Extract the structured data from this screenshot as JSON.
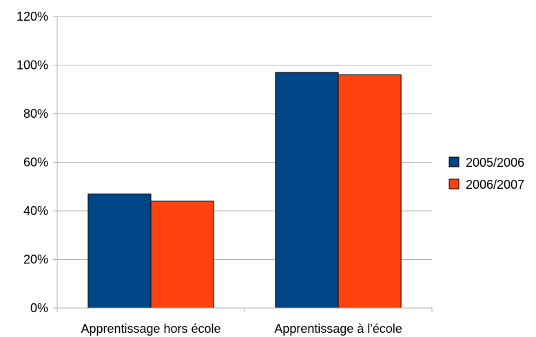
{
  "chart_data": {
    "type": "bar",
    "title": "",
    "xlabel": "",
    "ylabel": "",
    "categories": [
      "Apprentissage hors école",
      "Apprentissage à l'école"
    ],
    "series": [
      {
        "name": "2005/2006",
        "values": [
          47,
          97
        ],
        "color": "#004586"
      },
      {
        "name": "2006/2007",
        "values": [
          44,
          96
        ],
        "color": "#ff420e"
      }
    ],
    "ylim": [
      0,
      120
    ],
    "yticks": [
      0,
      20,
      40,
      60,
      80,
      100,
      120
    ],
    "ytick_labels": [
      "0%",
      "20%",
      "40%",
      "60%",
      "80%",
      "100%",
      "120%"
    ],
    "grid": true,
    "legend_position": "right"
  }
}
